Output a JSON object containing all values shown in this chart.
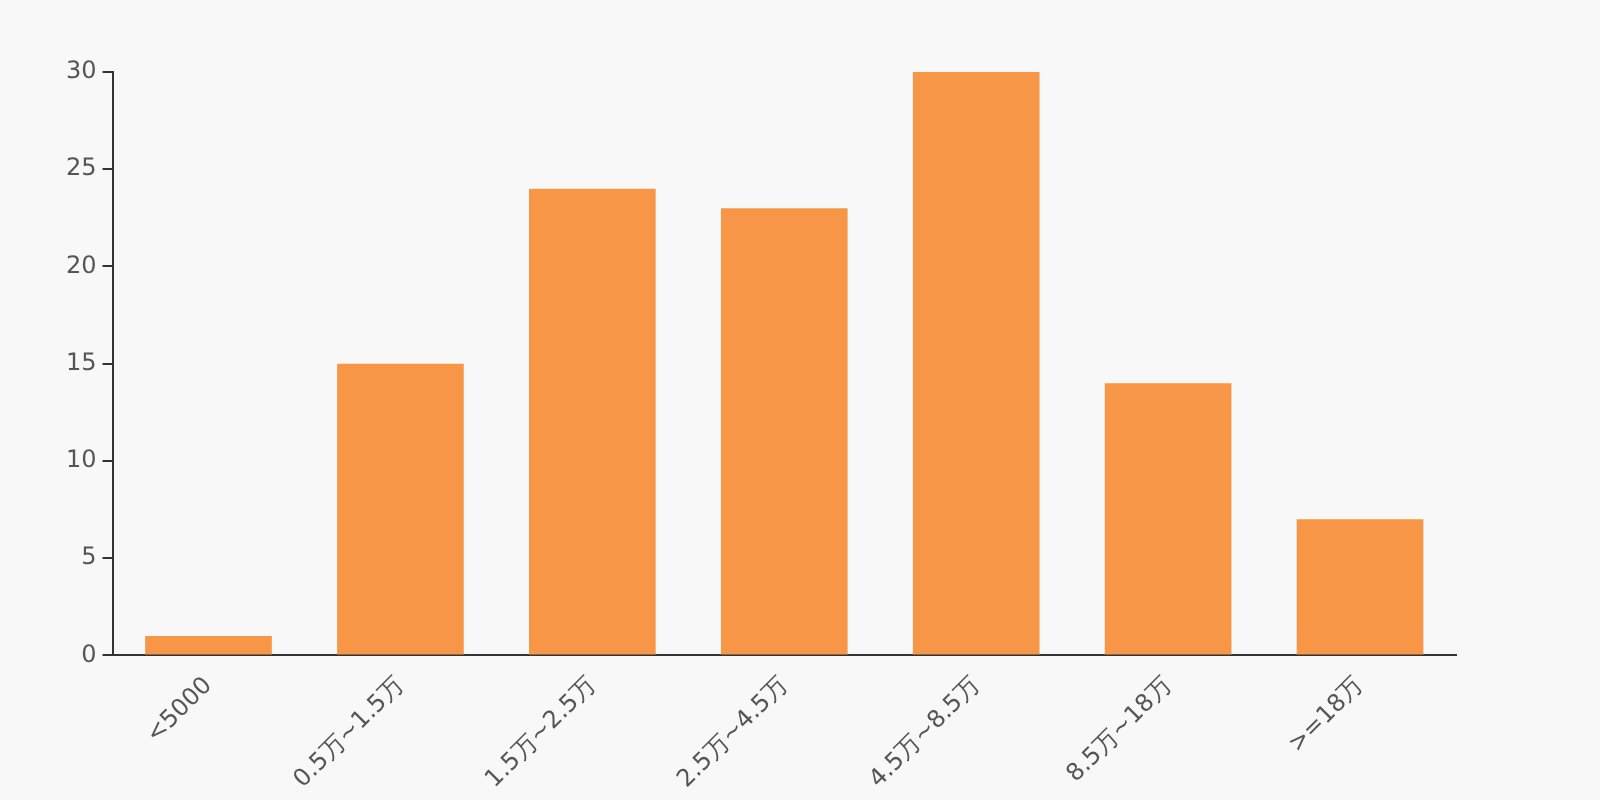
{
  "chart_data": {
    "type": "bar",
    "categories": [
      "<5000",
      "0.5万~1.5万",
      "1.5万~2.5万",
      "2.5万~4.5万",
      "4.5万~8.5万",
      "8.5万~18万",
      ">=18万"
    ],
    "values": [
      1,
      15,
      24,
      23,
      30,
      14,
      7
    ],
    "color": "#f79646",
    "ylim": [
      0,
      30
    ],
    "yticks": [
      0,
      5,
      10,
      15,
      20,
      25,
      30
    ],
    "grid": false
  }
}
